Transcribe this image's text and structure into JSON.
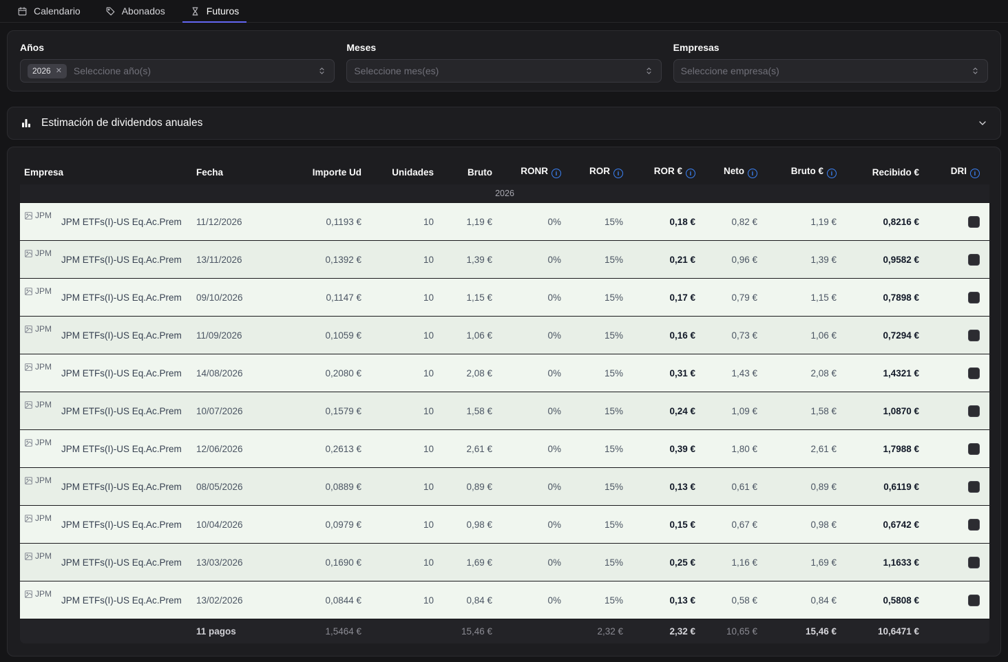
{
  "nav": {
    "tabs": [
      {
        "id": "calendario",
        "label": "Calendario",
        "icon": "calendar-icon",
        "active": false
      },
      {
        "id": "abonados",
        "label": "Abonados",
        "icon": "tags-icon",
        "active": false
      },
      {
        "id": "futuros",
        "label": "Futuros",
        "icon": "hourglass-icon",
        "active": true
      }
    ]
  },
  "filters": {
    "years": {
      "label": "Años",
      "placeholder": "Seleccione año(s)",
      "chips": [
        "2026"
      ]
    },
    "months": {
      "label": "Meses",
      "placeholder": "Seleccione mes(es)",
      "chips": []
    },
    "companies": {
      "label": "Empresas",
      "placeholder": "Seleccione empresa(s)",
      "chips": []
    }
  },
  "estimation": {
    "title": "Estimación de dividendos anuales"
  },
  "table": {
    "columns": [
      {
        "label": "Empresa",
        "info": false
      },
      {
        "label": "Fecha",
        "info": false
      },
      {
        "label": "Importe Ud",
        "info": false
      },
      {
        "label": "Unidades",
        "info": false
      },
      {
        "label": "Bruto",
        "info": false
      },
      {
        "label": "RONR",
        "info": true
      },
      {
        "label": "ROR",
        "info": true
      },
      {
        "label": "ROR €",
        "info": true
      },
      {
        "label": "Neto",
        "info": true
      },
      {
        "label": "Bruto €",
        "info": true
      },
      {
        "label": "Recibido €",
        "info": false
      },
      {
        "label": "DRI",
        "info": true
      }
    ],
    "group_label": "2026",
    "rows": [
      {
        "company": "JPM ETFs(I)-US Eq.Ac.Prem",
        "logo_alt": "JPM",
        "fecha": "11/12/2026",
        "importe_ud": "0,1193 €",
        "unidades": "10",
        "bruto": "1,19 €",
        "ronr": "0%",
        "ror": "15%",
        "ror_eur": "0,18 €",
        "neto": "0,82 €",
        "bruto_eur": "1,19 €",
        "recibido": "0,8216 €",
        "dri_checked": false
      },
      {
        "company": "JPM ETFs(I)-US Eq.Ac.Prem",
        "logo_alt": "JPM",
        "fecha": "13/11/2026",
        "importe_ud": "0,1392 €",
        "unidades": "10",
        "bruto": "1,39 €",
        "ronr": "0%",
        "ror": "15%",
        "ror_eur": "0,21 €",
        "neto": "0,96 €",
        "bruto_eur": "1,39 €",
        "recibido": "0,9582 €",
        "dri_checked": false
      },
      {
        "company": "JPM ETFs(I)-US Eq.Ac.Prem",
        "logo_alt": "JPM",
        "fecha": "09/10/2026",
        "importe_ud": "0,1147 €",
        "unidades": "10",
        "bruto": "1,15 €",
        "ronr": "0%",
        "ror": "15%",
        "ror_eur": "0,17 €",
        "neto": "0,79 €",
        "bruto_eur": "1,15 €",
        "recibido": "0,7898 €",
        "dri_checked": false
      },
      {
        "company": "JPM ETFs(I)-US Eq.Ac.Prem",
        "logo_alt": "JPM",
        "fecha": "11/09/2026",
        "importe_ud": "0,1059 €",
        "unidades": "10",
        "bruto": "1,06 €",
        "ronr": "0%",
        "ror": "15%",
        "ror_eur": "0,16 €",
        "neto": "0,73 €",
        "bruto_eur": "1,06 €",
        "recibido": "0,7294 €",
        "dri_checked": false
      },
      {
        "company": "JPM ETFs(I)-US Eq.Ac.Prem",
        "logo_alt": "JPM",
        "fecha": "14/08/2026",
        "importe_ud": "0,2080 €",
        "unidades": "10",
        "bruto": "2,08 €",
        "ronr": "0%",
        "ror": "15%",
        "ror_eur": "0,31 €",
        "neto": "1,43 €",
        "bruto_eur": "2,08 €",
        "recibido": "1,4321 €",
        "dri_checked": false
      },
      {
        "company": "JPM ETFs(I)-US Eq.Ac.Prem",
        "logo_alt": "JPM",
        "fecha": "10/07/2026",
        "importe_ud": "0,1579 €",
        "unidades": "10",
        "bruto": "1,58 €",
        "ronr": "0%",
        "ror": "15%",
        "ror_eur": "0,24 €",
        "neto": "1,09 €",
        "bruto_eur": "1,58 €",
        "recibido": "1,0870 €",
        "dri_checked": false
      },
      {
        "company": "JPM ETFs(I)-US Eq.Ac.Prem",
        "logo_alt": "JPM",
        "fecha": "12/06/2026",
        "importe_ud": "0,2613 €",
        "unidades": "10",
        "bruto": "2,61 €",
        "ronr": "0%",
        "ror": "15%",
        "ror_eur": "0,39 €",
        "neto": "1,80 €",
        "bruto_eur": "2,61 €",
        "recibido": "1,7988 €",
        "dri_checked": false
      },
      {
        "company": "JPM ETFs(I)-US Eq.Ac.Prem",
        "logo_alt": "JPM",
        "fecha": "08/05/2026",
        "importe_ud": "0,0889 €",
        "unidades": "10",
        "bruto": "0,89 €",
        "ronr": "0%",
        "ror": "15%",
        "ror_eur": "0,13 €",
        "neto": "0,61 €",
        "bruto_eur": "0,89 €",
        "recibido": "0,6119 €",
        "dri_checked": false
      },
      {
        "company": "JPM ETFs(I)-US Eq.Ac.Prem",
        "logo_alt": "JPM",
        "fecha": "10/04/2026",
        "importe_ud": "0,0979 €",
        "unidades": "10",
        "bruto": "0,98 €",
        "ronr": "0%",
        "ror": "15%",
        "ror_eur": "0,15 €",
        "neto": "0,67 €",
        "bruto_eur": "0,98 €",
        "recibido": "0,6742 €",
        "dri_checked": false
      },
      {
        "company": "JPM ETFs(I)-US Eq.Ac.Prem",
        "logo_alt": "JPM",
        "fecha": "13/03/2026",
        "importe_ud": "0,1690 €",
        "unidades": "10",
        "bruto": "1,69 €",
        "ronr": "0%",
        "ror": "15%",
        "ror_eur": "0,25 €",
        "neto": "1,16 €",
        "bruto_eur": "1,69 €",
        "recibido": "1,1633 €",
        "dri_checked": false
      },
      {
        "company": "JPM ETFs(I)-US Eq.Ac.Prem",
        "logo_alt": "JPM",
        "fecha": "13/02/2026",
        "importe_ud": "0,0844 €",
        "unidades": "10",
        "bruto": "0,84 €",
        "ronr": "0%",
        "ror": "15%",
        "ror_eur": "0,13 €",
        "neto": "0,58 €",
        "bruto_eur": "0,84 €",
        "recibido": "0,5808 €",
        "dri_checked": false
      }
    ],
    "footer": {
      "pagos": "11 pagos",
      "importe_ud": "1,5464 €",
      "bruto": "15,46 €",
      "ror": "2,32 €",
      "ror_eur": "2,32 €",
      "neto": "10,65 €",
      "bruto_eur": "15,46 €",
      "recibido": "10,6471 €"
    }
  },
  "colors": {
    "accent": "#6366f1",
    "info": "#3b82f6",
    "row_tint": "#f0f6ef",
    "row_tint_alt": "#e8efe7"
  }
}
